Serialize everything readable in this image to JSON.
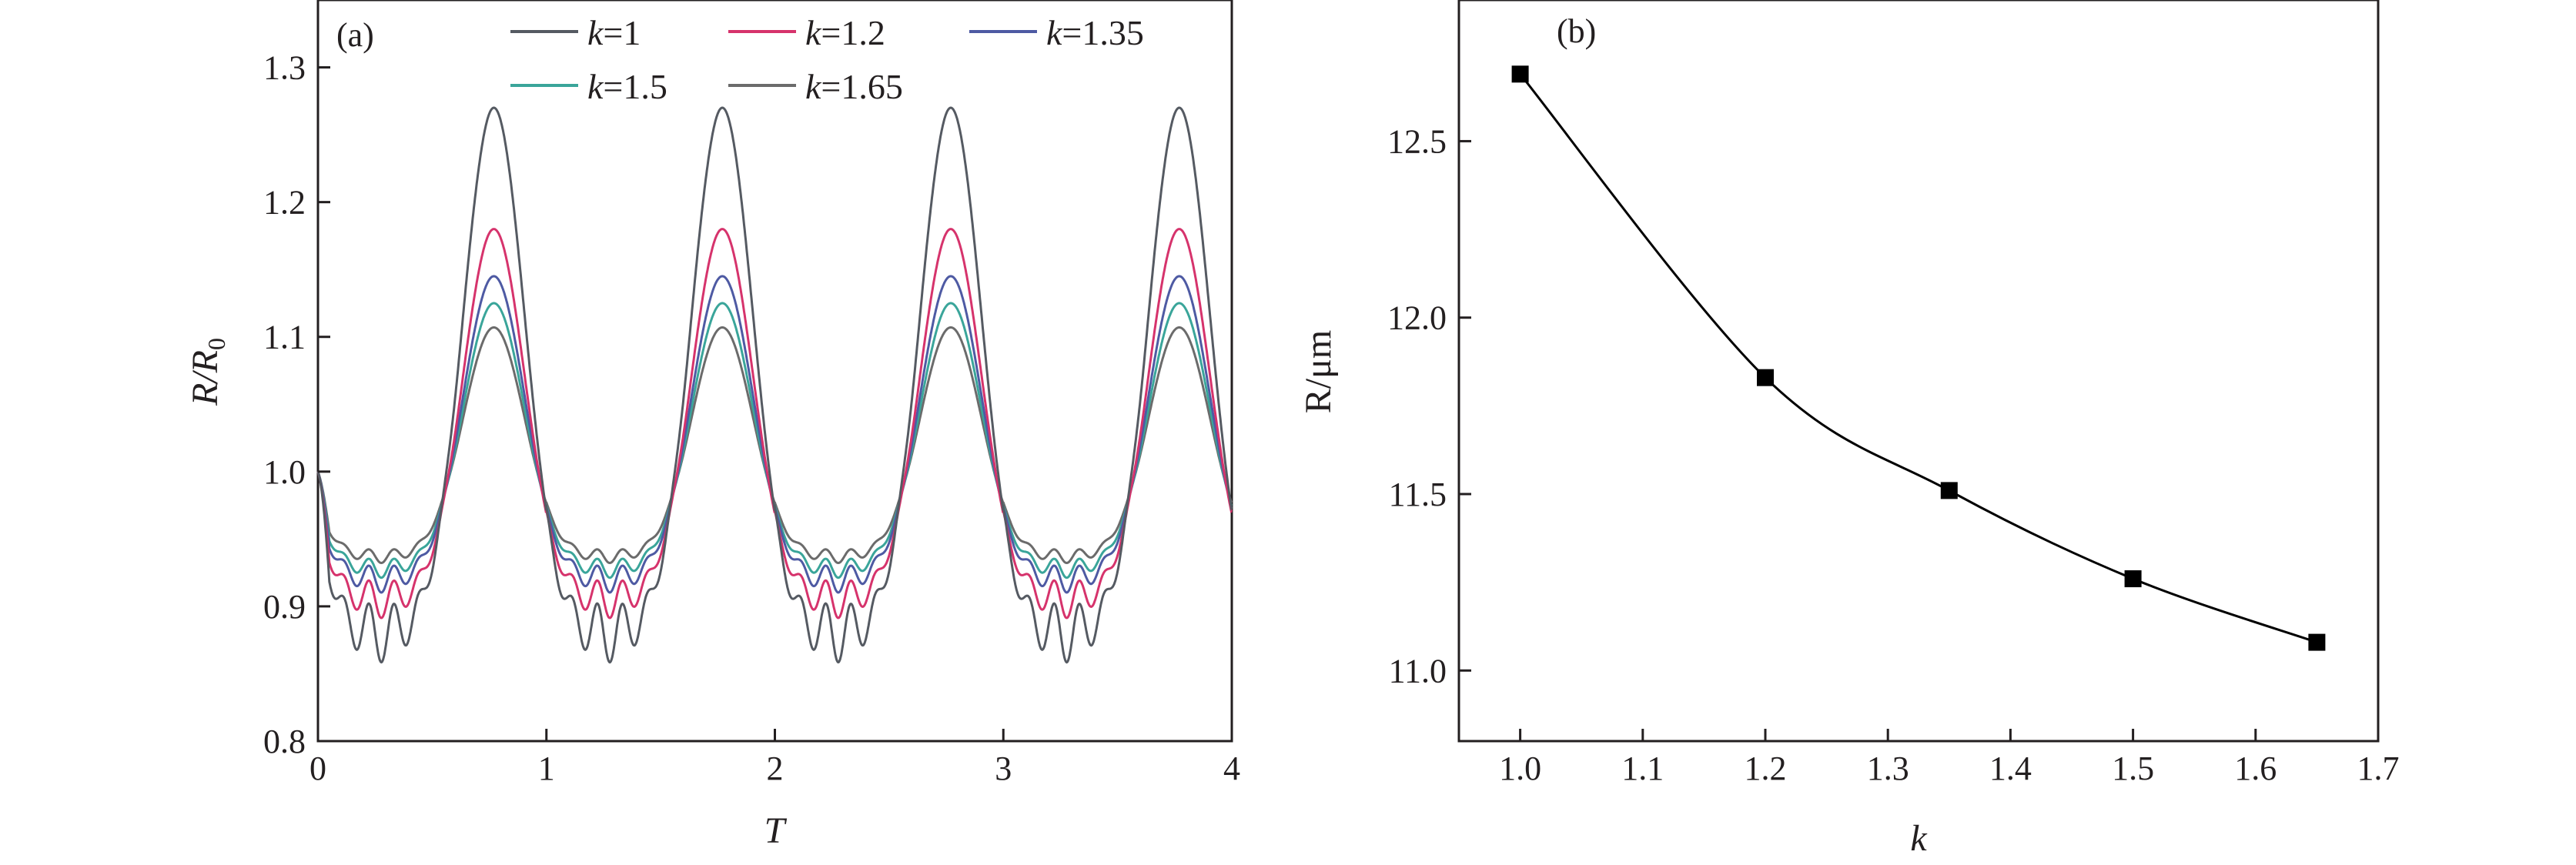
{
  "chart_data": [
    {
      "type": "line",
      "panel_label": "(a)",
      "xlabel": "T",
      "ylabel": {
        "main": "R/R",
        "subscript": "0"
      },
      "xlim": [
        0,
        4
      ],
      "ylim": [
        0.8,
        1.35
      ],
      "xticks": [
        "0",
        "1",
        "2",
        "3",
        "4"
      ],
      "yticks": [
        "0.8",
        "0.9",
        "1.0",
        "1.1",
        "1.2",
        "1.3"
      ],
      "legend_position": "top",
      "series": [
        {
          "name": "k=1",
          "legend_var": "k",
          "legend_rest": "=1",
          "color": "#555a62",
          "peak": 1.27,
          "trough": 0.88,
          "ripple": 0.022
        },
        {
          "name": "k=1.2",
          "legend_var": "k",
          "legend_rest": "=1.2",
          "color": "#d6336c",
          "peak": 1.18,
          "trough": 0.905,
          "ripple": 0.014
        },
        {
          "name": "k=1.35",
          "legend_var": "k",
          "legend_rest": "=1.35",
          "color": "#4e5aa3",
          "peak": 1.145,
          "trough": 0.92,
          "ripple": 0.01
        },
        {
          "name": "k=1.5",
          "legend_var": "k",
          "legend_rest": "=1.5",
          "color": "#3aa59a",
          "peak": 1.125,
          "trough": 0.928,
          "ripple": 0.007
        },
        {
          "name": "k=1.65",
          "legend_var": "k",
          "legend_rest": "=1.65",
          "color": "#6b6b6b",
          "peak": 1.107,
          "trough": 0.937,
          "ripple": 0.005
        }
      ]
    },
    {
      "type": "line",
      "panel_label": "(b)",
      "xlabel": "k",
      "ylabel": "R/μm",
      "xlim": [
        0.95,
        1.7
      ],
      "ylim": [
        10.8,
        12.9
      ],
      "xticks": [
        "1.0",
        "1.1",
        "1.2",
        "1.3",
        "1.4",
        "1.5",
        "1.6",
        "1.7"
      ],
      "yticks": [
        "11.0",
        "11.5",
        "12.0",
        "12.5"
      ],
      "marker": "square",
      "color": "#000000",
      "x": [
        1.0,
        1.2,
        1.35,
        1.5,
        1.65
      ],
      "y": [
        12.69,
        11.83,
        11.51,
        11.26,
        11.08
      ]
    }
  ]
}
